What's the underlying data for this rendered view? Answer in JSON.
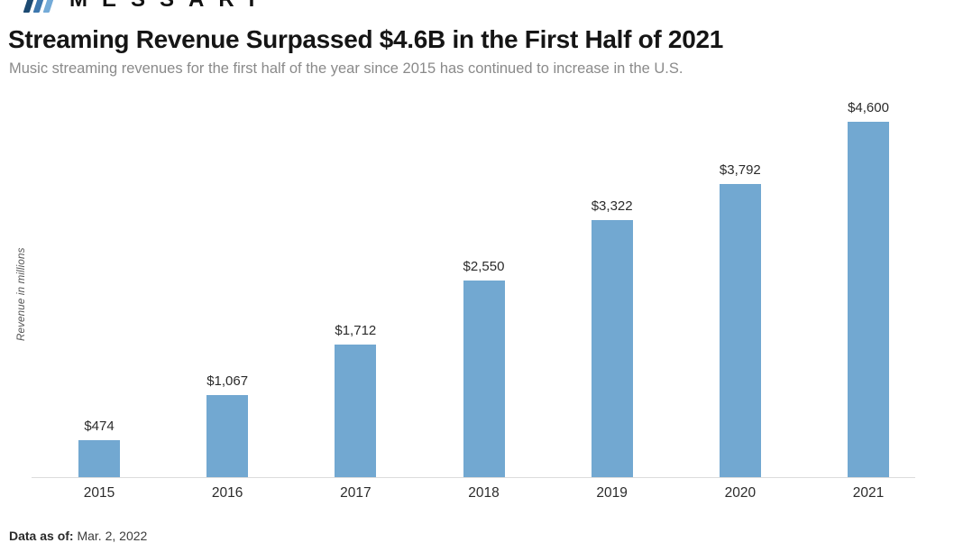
{
  "brand": {
    "logo_text": "MESSARI",
    "icon_colors": [
      "#1c4a72",
      "#3d77ae",
      "#74abd8"
    ]
  },
  "header": {
    "title": "Streaming Revenue Surpassed $4.6B in the First Half of 2021",
    "subtitle": "Music streaming revenues for the first half of the year since 2015 has continued to increase in the U.S."
  },
  "chart_data": {
    "type": "bar",
    "categories": [
      "2015",
      "2016",
      "2017",
      "2018",
      "2019",
      "2020",
      "2021"
    ],
    "values": [
      474,
      1067,
      1712,
      2550,
      3322,
      3792,
      4600
    ],
    "value_labels": [
      "$474",
      "$1,067",
      "$1,712",
      "$2,550",
      "$3,322",
      "$3,792",
      "$4,600"
    ],
    "title": "Streaming Revenue Surpassed $4.6B in the First Half of 2021",
    "xlabel": "",
    "ylabel": "Revenue in millions",
    "ylim": [
      0,
      4600
    ],
    "bar_color": "#72a8d1",
    "grid": false,
    "legend": false
  },
  "footer": {
    "label": "Data as of:",
    "value": "Mar. 2, 2022"
  }
}
